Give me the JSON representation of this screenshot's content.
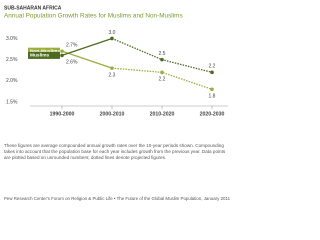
{
  "chart_data": {
    "type": "line",
    "kicker": "SUB-SAHARAN AFRICA",
    "title": "Annual Population Growth Rates for Muslims and Non-Muslims",
    "categories": [
      "1990-2000",
      "2000-2010",
      "2010-2020",
      "2020-2030"
    ],
    "series": [
      {
        "name": "Non-Muslims",
        "color": "#9aae3c",
        "values": [
          2.7,
          2.3,
          2.2,
          1.8
        ],
        "value_labels": [
          "2.7%",
          "2.3",
          "2.2",
          "1.8"
        ]
      },
      {
        "name": "Muslims",
        "color": "#4d6b1f",
        "values": [
          2.6,
          3.0,
          2.5,
          2.2
        ],
        "value_labels": [
          "2.6%",
          "3.0",
          "2.5",
          "2.2"
        ]
      }
    ],
    "ylim": [
      1.5,
      3.2
    ],
    "yticks": [
      {
        "value": 1.5,
        "label": "1.5%"
      },
      {
        "value": 2.0,
        "label": "2.0%"
      },
      {
        "value": 2.5,
        "label": "2.5%"
      },
      {
        "value": 3.0,
        "label": "3.0%"
      }
    ],
    "note": "These figures are average compounded annual growth rates over the 10-year periods shown. Compounding takes into account that the population base for each year includes growth from the previous year. Data points are plotted based on unrounded numbers; dotted lines denote projected figures.",
    "source": "Pew Research Center's Forum on Religion & Public Life • The Future of the Global Muslim Population, January 2011"
  }
}
